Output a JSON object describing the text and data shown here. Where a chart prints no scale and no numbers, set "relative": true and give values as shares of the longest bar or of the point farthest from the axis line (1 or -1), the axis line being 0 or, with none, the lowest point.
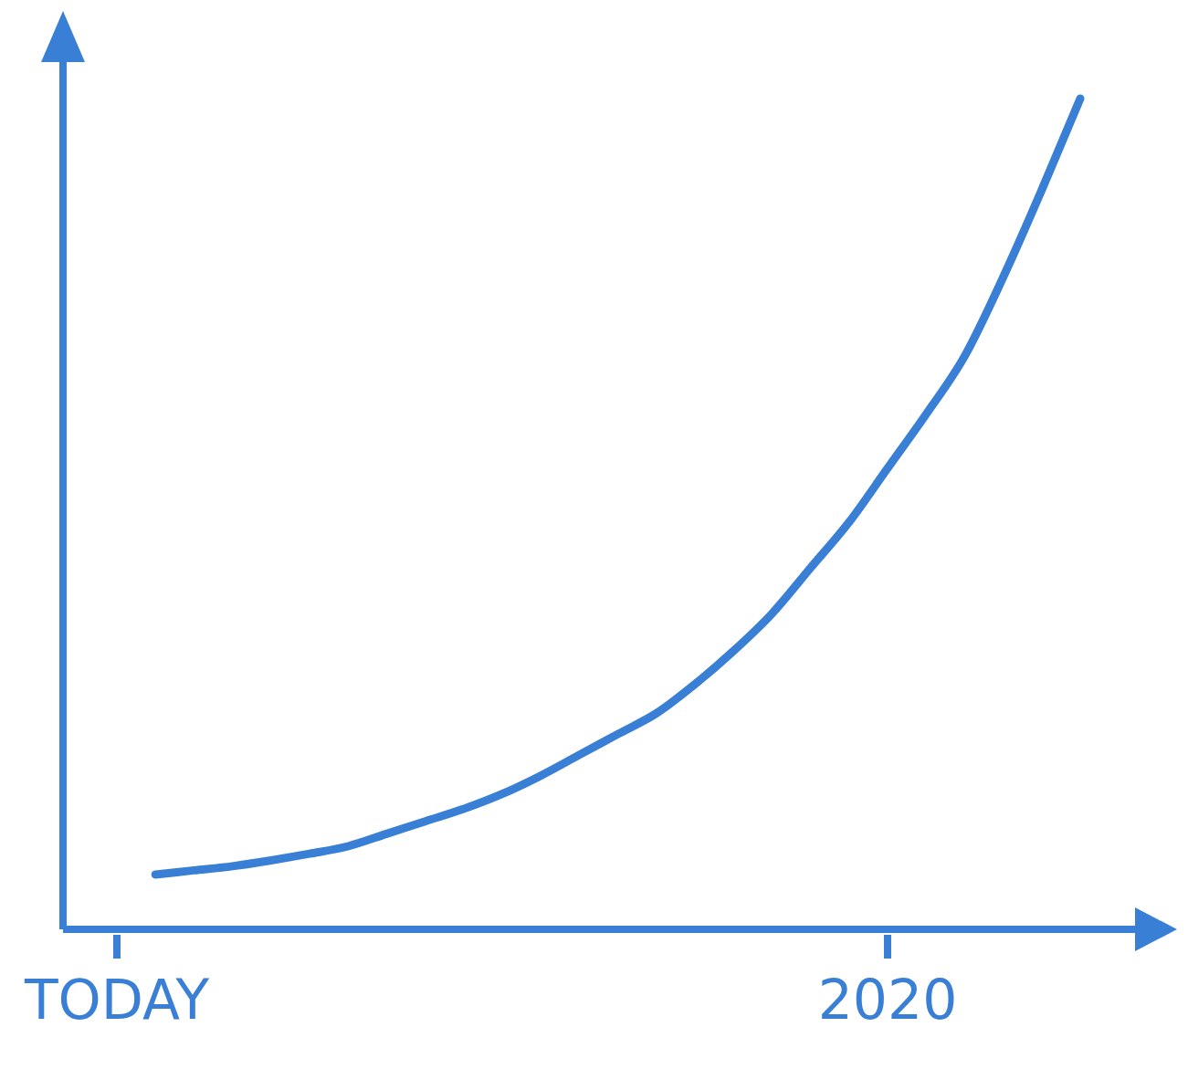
{
  "chart_data": {
    "type": "line",
    "relative": true,
    "categories": [
      "TODAY",
      null,
      null,
      null,
      null,
      null,
      null,
      null,
      null,
      null,
      null,
      null,
      null,
      null,
      null,
      null,
      null,
      null,
      null,
      null,
      "2020",
      null,
      null,
      null,
      null,
      null
    ],
    "series": [
      {
        "color": "#3a7fd6",
        "values": [
          null,
          0.066,
          0.071,
          0.076,
          0.083,
          0.091,
          0.1,
          0.115,
          0.13,
          0.145,
          0.163,
          0.185,
          0.21,
          0.235,
          0.26,
          0.295,
          0.335,
          0.38,
          0.435,
          0.49,
          0.555,
          0.62,
          0.69,
          0.785,
          0.89,
          1
        ]
      }
    ]
  }
}
